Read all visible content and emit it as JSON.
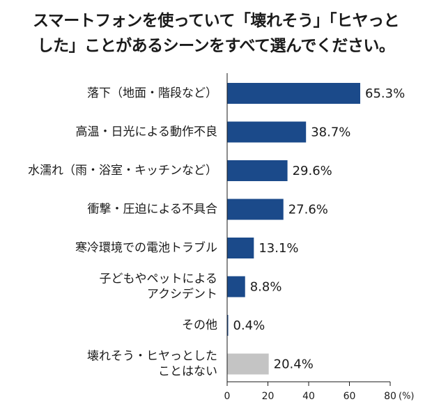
{
  "title": {
    "line1": "スマートフォンを使っていて「壊れそう」「ヒヤっと",
    "line2": "した」ことがあるシーンをすべて選んでください。"
  },
  "chart_data": {
    "type": "bar",
    "orientation": "horizontal",
    "categories": [
      [
        "落下（地面・階段など）"
      ],
      [
        "高温・日光による動作不良"
      ],
      [
        "水濡れ（雨・浴室・キッチンなど）"
      ],
      [
        "衝撃・圧迫による不具合"
      ],
      [
        "寒冷環境での電池トラブル"
      ],
      [
        "子どもやペットによる",
        "アクシデント"
      ],
      [
        "その他"
      ],
      [
        "壊れそう・ヒヤっとした",
        "ことはない"
      ]
    ],
    "values": [
      65.3,
      38.7,
      29.6,
      27.6,
      13.1,
      8.8,
      0.4,
      20.4
    ],
    "value_labels": [
      "65.3%",
      "38.7%",
      "29.6%",
      "27.6%",
      "13.1%",
      "8.8%",
      "0.4%",
      "20.4%"
    ],
    "bar_colors": [
      "#1b4a8a",
      "#1b4a8a",
      "#1b4a8a",
      "#1b4a8a",
      "#1b4a8a",
      "#1b4a8a",
      "#1b4a8a",
      "#c4c4c4"
    ],
    "xlim": [
      0,
      80
    ],
    "x_ticks": [
      "0",
      "20",
      "40",
      "60",
      "80"
    ],
    "x_unit": "(%)",
    "grid": false
  }
}
